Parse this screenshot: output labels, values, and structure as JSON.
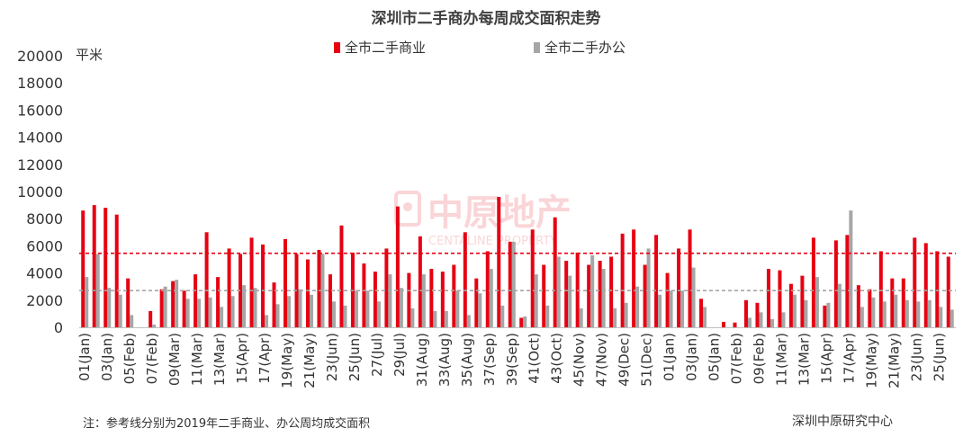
{
  "chart_data": {
    "type": "bar",
    "title": "深圳市二手商办每周成交面积走势",
    "ylabel": "平米",
    "ylim": [
      0,
      20000
    ],
    "yticks": [
      0,
      2000,
      4000,
      6000,
      8000,
      10000,
      12000,
      14000,
      16000,
      18000,
      20000
    ],
    "legend": "top",
    "grid": false,
    "categories": [
      "01(Jan)",
      "",
      "03(Jan)",
      "",
      "05(Feb)",
      "",
      "07(Feb)",
      "",
      "09(Mar)",
      "",
      "11(Mar)",
      "",
      "13(Mar)",
      "",
      "15(Apr)",
      "",
      "17(Apr)",
      "",
      "19(May)",
      "",
      "21(May)",
      "",
      "23(Jun)",
      "",
      "25(Jun)",
      "",
      "27(Jul)",
      "",
      "29(Jul)",
      "",
      "31(Aug)",
      "",
      "33(Aug)",
      "",
      "35(Aug)",
      "",
      "37(Sep)",
      "",
      "39(Sep)",
      "",
      "41(Oct)",
      "",
      "43(Oct)",
      "",
      "45(Nov)",
      "",
      "47(Nov)",
      "",
      "49(Dec)",
      "",
      "51(Dec)",
      "",
      "01(Jan)",
      "",
      "03(Jan)",
      "",
      "05(Jan)",
      "",
      "07(Feb)",
      "",
      "09(Feb)",
      "",
      "11(Mar)",
      "",
      "13(Mar)",
      "",
      "15(Apr)",
      "",
      "17(Apr)",
      "",
      "19(May)",
      "",
      "21(May)",
      "",
      "23(Jun)",
      "",
      "25(Jun)",
      ""
    ],
    "series": [
      {
        "name": "全市二手商业",
        "color": "#e60012",
        "values": [
          8600,
          9000,
          8800,
          8300,
          3600,
          0,
          1200,
          2800,
          3400,
          2700,
          3900,
          7000,
          3700,
          5800,
          5400,
          6600,
          6100,
          3300,
          6500,
          5400,
          5000,
          5700,
          3900,
          7500,
          5500,
          4700,
          4100,
          5800,
          8900,
          4000,
          6700,
          4300,
          4100,
          4600,
          7000,
          3600,
          5600,
          9600,
          6300,
          700,
          7200,
          4600,
          8100,
          4900,
          5500,
          4600,
          4900,
          5200,
          6900,
          7200,
          4600,
          6800,
          4000,
          5800,
          7200,
          2100,
          0,
          400,
          350,
          2000,
          1800,
          4300,
          4200,
          3200,
          3800,
          6600,
          1600,
          6400,
          6800,
          3100,
          2800,
          5600,
          3600,
          3600,
          6600,
          6200,
          5600,
          5200
        ]
      },
      {
        "name": "全市二手办公",
        "color": "#a6a6a6",
        "values": [
          3700,
          5400,
          2900,
          2400,
          900,
          0,
          200,
          3000,
          3500,
          2100,
          2100,
          2200,
          1500,
          2300,
          3100,
          2900,
          900,
          1700,
          2300,
          2800,
          2400,
          5400,
          1900,
          1600,
          2700,
          2700,
          1900,
          3900,
          2900,
          1400,
          3900,
          1200,
          1200,
          2700,
          900,
          2500,
          4300,
          1600,
          6300,
          800,
          3900,
          1600,
          5200,
          3800,
          1400,
          5300,
          4300,
          1400,
          1800,
          3000,
          5800,
          2400,
          2700,
          2700,
          4400,
          1500,
          0,
          0,
          0,
          700,
          1100,
          600,
          1100,
          2400,
          2000,
          3700,
          1800,
          3200,
          8600,
          1500,
          2200,
          1900,
          2400,
          2000,
          1900,
          2000,
          1500,
          1300
        ]
      }
    ],
    "reference_lines": [
      {
        "value": 5450,
        "color": "#e60012"
      },
      {
        "value": 2700,
        "color": "#a6a6a6"
      }
    ]
  },
  "watermark": {
    "brand_text": "中原地产",
    "sub_text": "CENTALINE PROPERTY"
  },
  "footnote": "注：参考线分别为2019年二手商业、办公周均成交面积",
  "source": "深圳中原研究中心"
}
